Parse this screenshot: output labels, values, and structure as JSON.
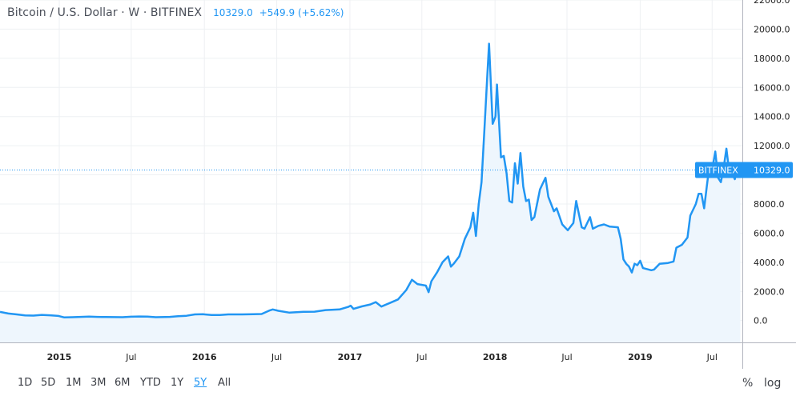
{
  "legend": {
    "symbol": "Bitcoin / U.S. Dollar · W · BITFINEX",
    "price": "10329.0",
    "change": "+549.9 (+5.62%)"
  },
  "price_label": {
    "exchange": "BITFINEX",
    "value": "10329.0"
  },
  "toolbar": {
    "ranges": [
      "1D",
      "5D",
      "1M",
      "3M",
      "6M",
      "YTD",
      "1Y",
      "5Y",
      "All"
    ],
    "active": "5Y",
    "percent": "%",
    "log": "log"
  },
  "colors": {
    "line": "#2196f3",
    "area": "#eef6fd",
    "grid": "#eef0f3",
    "axis_text": "#222222"
  },
  "chart_data": {
    "type": "area",
    "title": "Bitcoin / U.S. Dollar · W · BITFINEX",
    "x_ticks": [
      "2015",
      "Jul",
      "2016",
      "Jul",
      "2017",
      "Jul",
      "2018",
      "Jul",
      "2019",
      "Jul"
    ],
    "y_ticks": [
      "0.0",
      "2000.0",
      "4000.0",
      "6000.0",
      "8000.0",
      "10000.0",
      "12000.0",
      "14000.0",
      "16000.0",
      "18000.0",
      "20000.0",
      "22000.0"
    ],
    "ylim": [
      -1500,
      22000
    ],
    "xlim": [
      "2014-08-05",
      "2019-09-15"
    ],
    "last_value": 10329.0,
    "series": [
      {
        "points": [
          [
            "2014-08-05",
            590
          ],
          [
            "2014-08-26",
            480
          ],
          [
            "2014-09-16",
            420
          ],
          [
            "2014-10-07",
            350
          ],
          [
            "2014-10-28",
            340
          ],
          [
            "2014-11-18",
            390
          ],
          [
            "2014-12-09",
            360
          ],
          [
            "2014-12-30",
            320
          ],
          [
            "2015-01-13",
            220
          ],
          [
            "2015-02-03",
            230
          ],
          [
            "2015-02-24",
            250
          ],
          [
            "2015-03-17",
            270
          ],
          [
            "2015-04-07",
            250
          ],
          [
            "2015-04-28",
            240
          ],
          [
            "2015-05-19",
            237
          ],
          [
            "2015-06-09",
            230
          ],
          [
            "2015-06-30",
            260
          ],
          [
            "2015-07-21",
            280
          ],
          [
            "2015-08-11",
            270
          ],
          [
            "2015-09-01",
            230
          ],
          [
            "2015-10-06",
            250
          ],
          [
            "2015-10-27",
            300
          ],
          [
            "2015-11-17",
            330
          ],
          [
            "2015-12-08",
            420
          ],
          [
            "2015-12-29",
            430
          ],
          [
            "2016-01-19",
            380
          ],
          [
            "2016-02-09",
            380
          ],
          [
            "2016-03-01",
            420
          ],
          [
            "2016-04-05",
            420
          ],
          [
            "2016-05-03",
            440
          ],
          [
            "2016-05-24",
            450
          ],
          [
            "2016-06-14",
            700
          ],
          [
            "2016-06-21",
            760
          ],
          [
            "2016-07-05",
            670
          ],
          [
            "2016-08-02",
            540
          ],
          [
            "2016-09-06",
            600
          ],
          [
            "2016-10-04",
            610
          ],
          [
            "2016-11-01",
            720
          ],
          [
            "2016-12-06",
            760
          ],
          [
            "2016-12-27",
            930
          ],
          [
            "2017-01-03",
            1020
          ],
          [
            "2017-01-10",
            800
          ],
          [
            "2017-01-31",
            970
          ],
          [
            "2017-02-21",
            1100
          ],
          [
            "2017-03-07",
            1270
          ],
          [
            "2017-03-21",
            960
          ],
          [
            "2017-04-11",
            1200
          ],
          [
            "2017-05-02",
            1450
          ],
          [
            "2017-05-23",
            2100
          ],
          [
            "2017-06-06",
            2800
          ],
          [
            "2017-06-20",
            2500
          ],
          [
            "2017-07-11",
            2400
          ],
          [
            "2017-07-18",
            1950
          ],
          [
            "2017-07-25",
            2700
          ],
          [
            "2017-08-08",
            3300
          ],
          [
            "2017-08-22",
            4000
          ],
          [
            "2017-09-05",
            4400
          ],
          [
            "2017-09-12",
            3700
          ],
          [
            "2017-09-19",
            3900
          ],
          [
            "2017-10-03",
            4400
          ],
          [
            "2017-10-17",
            5600
          ],
          [
            "2017-10-31",
            6400
          ],
          [
            "2017-11-07",
            7400
          ],
          [
            "2017-11-14",
            5800
          ],
          [
            "2017-11-21",
            8000
          ],
          [
            "2017-11-28",
            9500
          ],
          [
            "2017-12-05",
            13000
          ],
          [
            "2017-12-12",
            16500
          ],
          [
            "2017-12-17",
            19000
          ],
          [
            "2017-12-26",
            13500
          ],
          [
            "2018-01-02",
            14000
          ],
          [
            "2018-01-06",
            16200
          ],
          [
            "2018-01-16",
            11200
          ],
          [
            "2018-01-23",
            11300
          ],
          [
            "2018-01-30",
            10100
          ],
          [
            "2018-02-06",
            8200
          ],
          [
            "2018-02-13",
            8100
          ],
          [
            "2018-02-20",
            10800
          ],
          [
            "2018-02-27",
            9400
          ],
          [
            "2018-03-06",
            11500
          ],
          [
            "2018-03-13",
            9200
          ],
          [
            "2018-03-20",
            8200
          ],
          [
            "2018-03-27",
            8300
          ],
          [
            "2018-04-03",
            6900
          ],
          [
            "2018-04-10",
            7100
          ],
          [
            "2018-04-24",
            9000
          ],
          [
            "2018-05-01",
            9400
          ],
          [
            "2018-05-08",
            9800
          ],
          [
            "2018-05-15",
            8500
          ],
          [
            "2018-05-29",
            7500
          ],
          [
            "2018-06-05",
            7700
          ],
          [
            "2018-06-19",
            6600
          ],
          [
            "2018-07-03",
            6200
          ],
          [
            "2018-07-17",
            6700
          ],
          [
            "2018-07-24",
            8200
          ],
          [
            "2018-08-07",
            6400
          ],
          [
            "2018-08-14",
            6300
          ],
          [
            "2018-08-28",
            7100
          ],
          [
            "2018-09-04",
            6300
          ],
          [
            "2018-09-18",
            6500
          ],
          [
            "2018-10-02",
            6600
          ],
          [
            "2018-10-16",
            6450
          ],
          [
            "2018-11-06",
            6400
          ],
          [
            "2018-11-13",
            5600
          ],
          [
            "2018-11-20",
            4200
          ],
          [
            "2018-11-27",
            3900
          ],
          [
            "2018-12-04",
            3700
          ],
          [
            "2018-12-11",
            3300
          ],
          [
            "2018-12-18",
            3900
          ],
          [
            "2018-12-25",
            3800
          ],
          [
            "2019-01-01",
            4100
          ],
          [
            "2019-01-08",
            3600
          ],
          [
            "2019-01-29",
            3450
          ],
          [
            "2019-02-05",
            3500
          ],
          [
            "2019-02-19",
            3900
          ],
          [
            "2019-03-12",
            3950
          ],
          [
            "2019-03-26",
            4050
          ],
          [
            "2019-04-02",
            5000
          ],
          [
            "2019-04-16",
            5200
          ],
          [
            "2019-04-30",
            5700
          ],
          [
            "2019-05-07",
            7200
          ],
          [
            "2019-05-21",
            8000
          ],
          [
            "2019-05-28",
            8700
          ],
          [
            "2019-06-04",
            8700
          ],
          [
            "2019-06-11",
            7700
          ],
          [
            "2019-06-18",
            9300
          ],
          [
            "2019-06-25",
            10800
          ],
          [
            "2019-07-02",
            10500
          ],
          [
            "2019-07-09",
            11600
          ],
          [
            "2019-07-16",
            9800
          ],
          [
            "2019-07-23",
            9500
          ],
          [
            "2019-07-30",
            10500
          ],
          [
            "2019-08-06",
            11800
          ],
          [
            "2019-08-13",
            10200
          ],
          [
            "2019-08-20",
            10100
          ],
          [
            "2019-08-27",
            9700
          ],
          [
            "2019-09-03",
            10500
          ],
          [
            "2019-09-10",
            10329
          ]
        ]
      }
    ]
  }
}
